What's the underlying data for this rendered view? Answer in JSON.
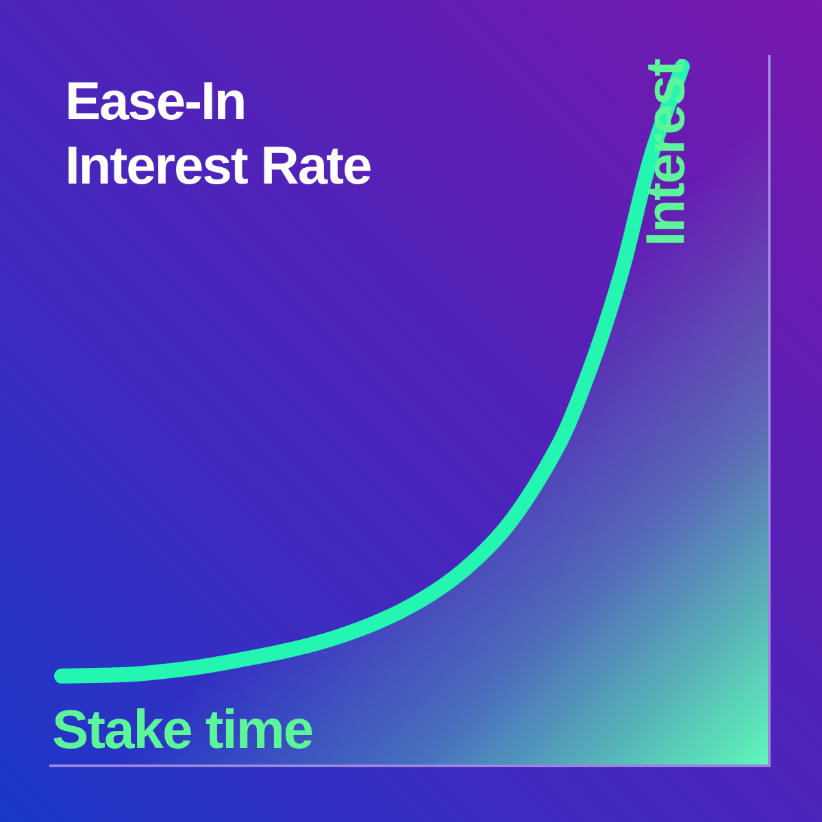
{
  "chart_data": {
    "type": "line",
    "title_lines": [
      "Ease-In",
      "Interest Rate"
    ],
    "xlabel": "Stake time",
    "ylabel": "Interest",
    "grid": false,
    "legend": "none",
    "series": [
      {
        "x": [
          0,
          0.1,
          0.2,
          0.3,
          0.4,
          0.5,
          0.6,
          0.7,
          0.8,
          0.85,
          0.9,
          0.95,
          1.0
        ],
        "y": [
          0,
          0.0024,
          0.012,
          0.029,
          0.051,
          0.085,
          0.138,
          0.225,
          0.378,
          0.5,
          0.655,
          0.853,
          1.0
        ]
      }
    ],
    "colors": {
      "curve": "#24f5b0",
      "label": "#5cf59a",
      "title": "#ffffff",
      "axis": "#9a86dc",
      "fill_start": "#5ef7b8"
    }
  }
}
